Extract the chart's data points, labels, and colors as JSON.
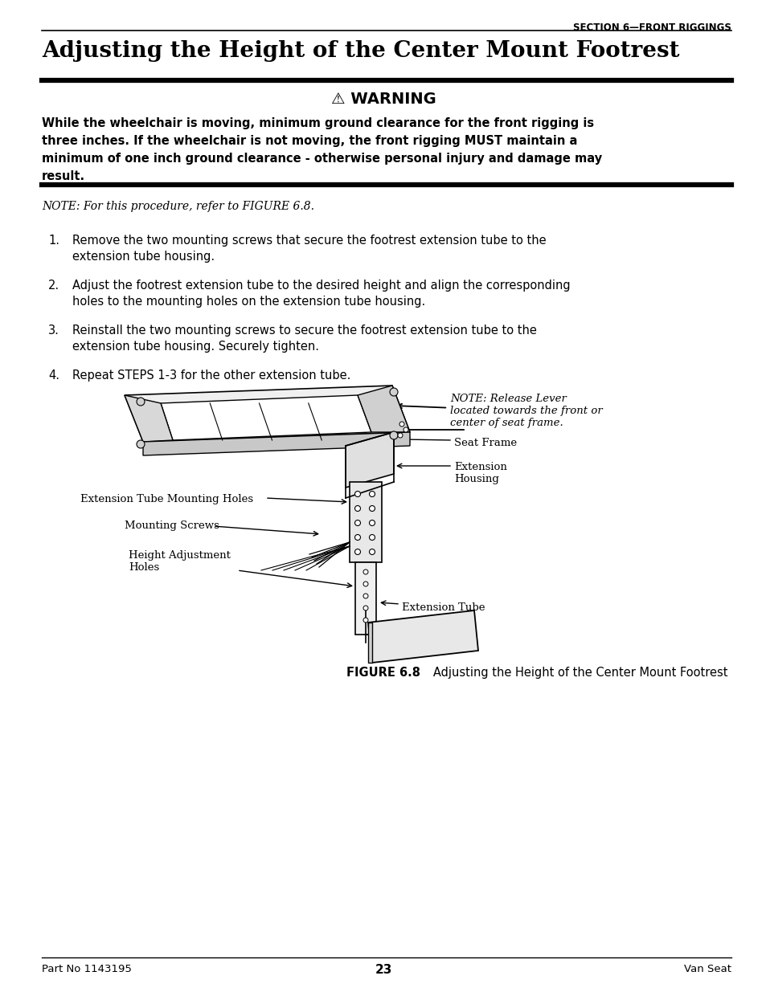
{
  "page_bg": "#ffffff",
  "header_section": "SECTION 6—FRONT RIGGINGS",
  "title": "Adjusting the Height of the Center Mount Footrest",
  "warning_title": "⚠ WARNING",
  "warning_line1": "While the wheelchair is moving, minimum ground clearance for the front rigging is",
  "warning_line2": "three inches. If the wheelchair is not moving, the front rigging ",
  "warning_line2b": "MUST",
  "warning_line2c": " maintain a",
  "warning_line3": "minimum of one inch ground clearance - otherwise personal injury and damage may",
  "warning_line4": "result.",
  "note_text": "NOTE: For this procedure, refer to FIGURE 6.8.",
  "steps": [
    [
      "Remove the two mounting screws that secure the footrest extension tube to the",
      "extension tube housing."
    ],
    [
      "Adjust the footrest extension tube to the desired height and align the corresponding",
      "holes to the mounting holes on the extension tube housing."
    ],
    [
      "Reinstall the two mounting screws to secure the footrest extension tube to the",
      "extension tube housing. Securely tighten."
    ],
    [
      "Repeat STEPS 1-3 for the other extension tube."
    ]
  ],
  "figure_caption_bold": "FIGURE 6.8",
  "figure_caption_rest": "   Adjusting the Height of the Center Mount Footrest",
  "footer_left": "Part No 1143195",
  "footer_center": "23",
  "footer_right": "Van Seat"
}
